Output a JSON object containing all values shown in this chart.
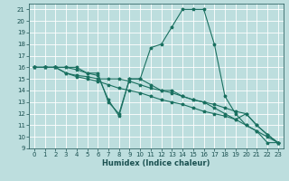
{
  "xlabel": "Humidex (Indice chaleur)",
  "bg_color": "#bddede",
  "grid_color": "#ffffff",
  "line_color": "#1a7060",
  "xlim": [
    -0.5,
    23.5
  ],
  "ylim": [
    9,
    21.5
  ],
  "yticks": [
    9,
    10,
    11,
    12,
    13,
    14,
    15,
    16,
    17,
    18,
    19,
    20,
    21
  ],
  "xticks": [
    0,
    1,
    2,
    3,
    4,
    5,
    6,
    7,
    8,
    9,
    10,
    11,
    12,
    13,
    14,
    15,
    16,
    17,
    18,
    19,
    20,
    21,
    22,
    23
  ],
  "series": [
    {
      "x": [
        0,
        1,
        2,
        3,
        4,
        5,
        6,
        7,
        8,
        9,
        10,
        11,
        12,
        13,
        14,
        15,
        16,
        17,
        18,
        19,
        20,
        21,
        22,
        23
      ],
      "y": [
        16,
        16,
        16,
        16,
        16,
        15.5,
        15.5,
        13,
        12,
        15,
        15,
        17.7,
        18,
        19.5,
        21,
        21,
        21,
        18,
        13.5,
        12,
        11,
        10.5,
        9.5,
        9.5
      ]
    },
    {
      "x": [
        0,
        1,
        2,
        3,
        4,
        5,
        6,
        7,
        8,
        9,
        10,
        11,
        12,
        13,
        14,
        15,
        16,
        17,
        18,
        19,
        20,
        21,
        22,
        23
      ],
      "y": [
        16,
        16,
        16,
        15.5,
        15.3,
        15.2,
        15,
        15,
        15,
        14.8,
        14.5,
        14.2,
        14,
        13.8,
        13.5,
        13.2,
        13,
        12.8,
        12.5,
        12.2,
        12,
        11,
        10.2,
        9.5
      ]
    },
    {
      "x": [
        0,
        1,
        2,
        3,
        4,
        5,
        6,
        7,
        8,
        9,
        10,
        11,
        12,
        13,
        14,
        15,
        16,
        17,
        18,
        19,
        20,
        21,
        22,
        23
      ],
      "y": [
        16,
        16,
        16,
        15.5,
        15.2,
        15,
        14.8,
        14.5,
        14.2,
        14,
        13.8,
        13.5,
        13.2,
        13,
        12.8,
        12.5,
        12.2,
        12,
        11.8,
        11.5,
        11,
        10.5,
        10,
        9.5
      ]
    },
    {
      "x": [
        0,
        1,
        2,
        3,
        4,
        5,
        6,
        7,
        8,
        9,
        10,
        11,
        12,
        13,
        14,
        15,
        16,
        17,
        18,
        19,
        20,
        21,
        22,
        23
      ],
      "y": [
        16,
        16,
        16,
        16,
        15.8,
        15.5,
        15.3,
        13.2,
        11.8,
        15,
        15,
        14.5,
        14,
        14,
        13.5,
        13.2,
        13,
        12.5,
        12,
        11.5,
        12,
        11,
        10.2,
        9.5
      ]
    }
  ]
}
